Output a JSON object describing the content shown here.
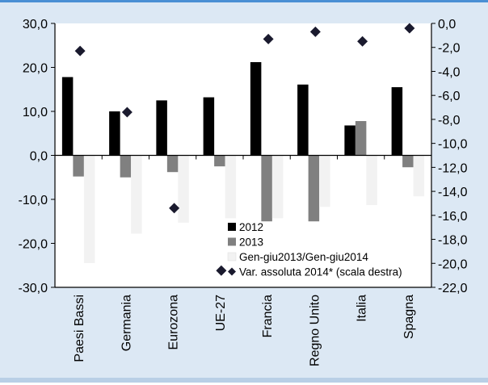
{
  "chart_data": {
    "type": "bar",
    "categories": [
      "Paesi Bassi",
      "Germania",
      "Eurozona",
      "UE-27",
      "Francia",
      "Regno Unito",
      "Italia",
      "Spagna"
    ],
    "series": [
      {
        "name": "2012",
        "axis": "left",
        "mark": "bar",
        "color": "#000000",
        "values": [
          17.8,
          10.0,
          12.5,
          13.2,
          21.2,
          16.1,
          6.8,
          15.5
        ]
      },
      {
        "name": "2013",
        "axis": "left",
        "mark": "bar",
        "color": "#808080",
        "values": [
          -4.8,
          -5.0,
          -3.8,
          -2.5,
          -15.0,
          -15.0,
          7.8,
          -2.7
        ]
      },
      {
        "name": "Gen-giu2013/Gen-giu2014",
        "axis": "left",
        "mark": "bar",
        "color": "#f2f2f2",
        "values": [
          -24.5,
          -17.8,
          -15.3,
          -14.3,
          -14.3,
          -11.7,
          -11.3,
          -9.3
        ]
      },
      {
        "name": "Var. assoluta 2014* (scala destra)",
        "axis": "right",
        "mark": "diamond",
        "color": "#1a1a2e",
        "values": [
          -2.3,
          -7.4,
          -15.4,
          -20.6,
          -1.3,
          -0.7,
          -1.5,
          -0.4
        ]
      }
    ],
    "y_left": {
      "min": -30,
      "max": 30,
      "step": 10,
      "tick_labels": [
        "30,0",
        "20,0",
        "10,0",
        "0,0",
        "-10,0",
        "-20,0",
        "-30,0"
      ]
    },
    "y_right": {
      "min": -22,
      "max": 0,
      "step": 2,
      "tick_labels": [
        "0,0",
        "-2,0",
        "-4,0",
        "-6,0",
        "-8,0",
        "-10,0",
        "-12,0",
        "-14,0",
        "-16,0",
        "-18,0",
        "-20,0",
        "-22,0"
      ]
    },
    "legend_position": "bottom-right inside plot",
    "grid": false
  }
}
